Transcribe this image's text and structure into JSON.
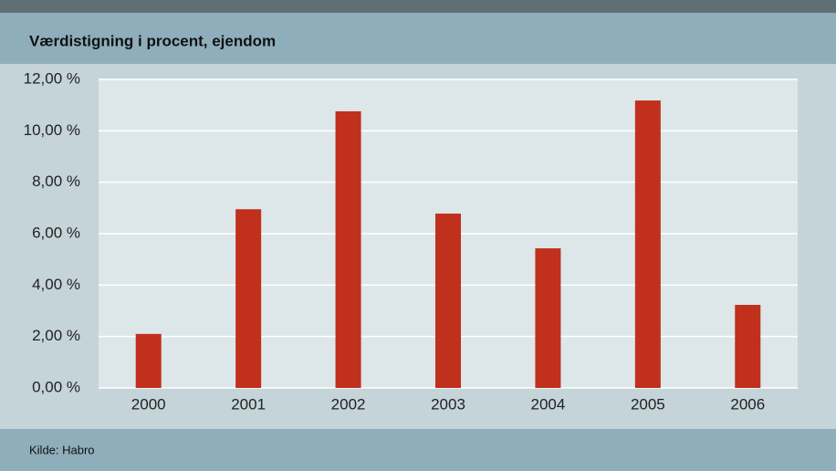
{
  "chart_data": {
    "type": "bar",
    "title": "Værdistigning i procent, ejendom",
    "source": "Kilde: Habro",
    "categories": [
      "2000",
      "2001",
      "2002",
      "2003",
      "2004",
      "2005",
      "2006"
    ],
    "values": [
      2.1,
      6.95,
      10.76,
      6.78,
      5.43,
      11.18,
      3.23
    ],
    "color": "#c0301c",
    "ylim": [
      0,
      12
    ],
    "yticks": [
      {
        "value": 0,
        "label": "0,00 %"
      },
      {
        "value": 2,
        "label": "2,00 %"
      },
      {
        "value": 4,
        "label": "4,00 %"
      },
      {
        "value": 6,
        "label": "6,00 %"
      },
      {
        "value": 8,
        "label": "8,00 %"
      },
      {
        "value": 10,
        "label": "10,00 %"
      },
      {
        "value": 12,
        "label": "12,00 %"
      }
    ],
    "grid": true
  }
}
